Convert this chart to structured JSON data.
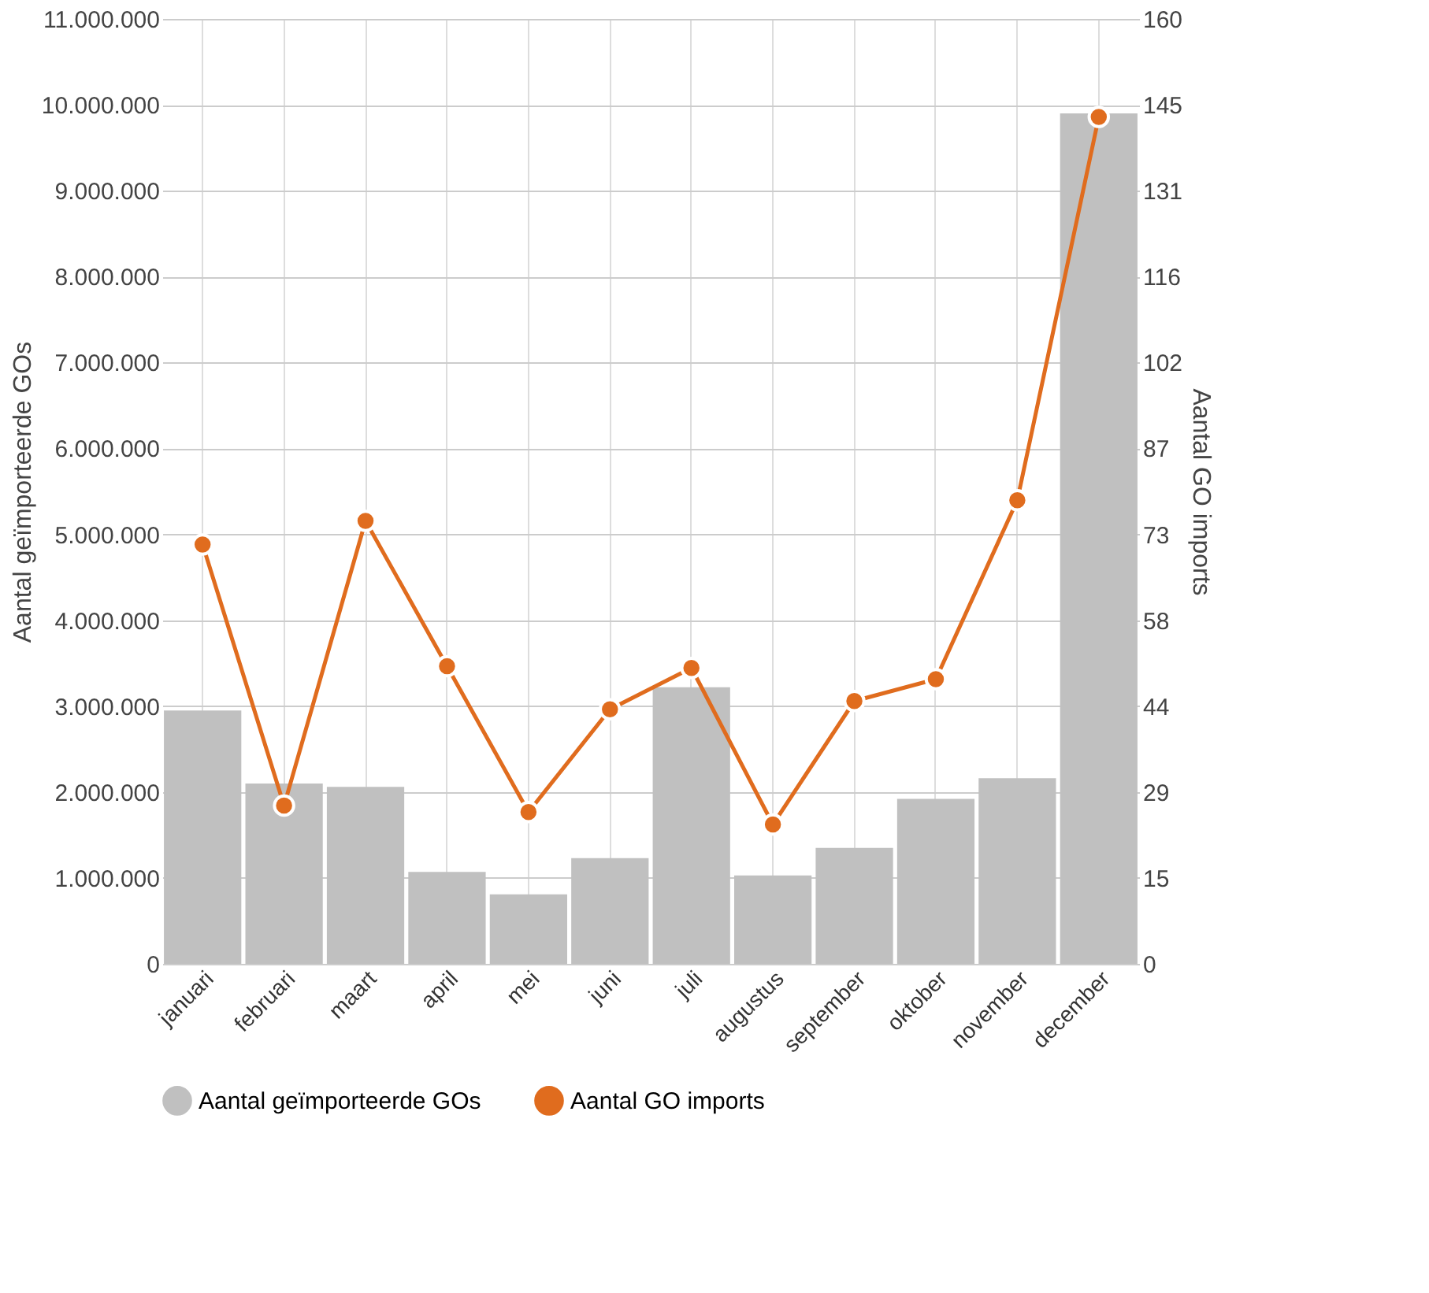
{
  "chart_data": {
    "type": "bar",
    "categories": [
      "januari",
      "februari",
      "maart",
      "april",
      "mei",
      "juni",
      "juli",
      "augustus",
      "september",
      "oktober",
      "november",
      "december"
    ],
    "series": [
      {
        "name": "Aantal geïmporteerde GOs",
        "color": "#c0c0c0",
        "values": [
          2950000,
          2100000,
          2060000,
          1070000,
          810000,
          1230000,
          3220000,
          1030000,
          1350000,
          1920000,
          2160000,
          9900000
        ]
      },
      {
        "name": "Aantal GO imports",
        "type": "line",
        "axis": "y2",
        "color": "#e06c1e",
        "values": [
          71,
          26.8,
          75,
          50.4,
          25.7,
          43.1,
          50.1,
          23.6,
          44.5,
          48.2,
          78.5,
          143.4
        ]
      }
    ],
    "ylabel": "Aantal geïmporteerde GOs",
    "y2label": "Aantal GO imports",
    "ylim": [
      0,
      11000000
    ],
    "yticks": [
      {
        "value": 0,
        "label": "0"
      },
      {
        "value": 1000000,
        "label": "1.000.000"
      },
      {
        "value": 2000000,
        "label": "2.000.000"
      },
      {
        "value": 3000000,
        "label": "3.000.000"
      },
      {
        "value": 4000000,
        "label": "4.000.000"
      },
      {
        "value": 5000000,
        "label": "5.000.000"
      },
      {
        "value": 6000000,
        "label": "6.000.000"
      },
      {
        "value": 7000000,
        "label": "7.000.000"
      },
      {
        "value": 8000000,
        "label": "8.000.000"
      },
      {
        "value": 9000000,
        "label": "9.000.000"
      },
      {
        "value": 10000000,
        "label": "10.000.000"
      },
      {
        "value": 11000000,
        "label": "11.000.000"
      }
    ],
    "y2lim": [
      0,
      160
    ],
    "y2ticks": [
      0,
      {
        "value": 14.545,
        "label": "15"
      },
      {
        "value": 29.091,
        "label": "29"
      },
      {
        "value": 43.636,
        "label": "44"
      },
      {
        "value": 58.182,
        "label": "58"
      },
      {
        "value": 72.727,
        "label": "73"
      },
      {
        "value": 87.273,
        "label": "87"
      },
      {
        "value": 101.818,
        "label": "102"
      },
      {
        "value": 116.364,
        "label": "116"
      },
      {
        "value": 130.909,
        "label": "131"
      },
      {
        "value": 145.455,
        "label": "145"
      },
      160
    ],
    "grid": true,
    "legend": "bottom",
    "marker": "circle",
    "line_style": "solid"
  }
}
